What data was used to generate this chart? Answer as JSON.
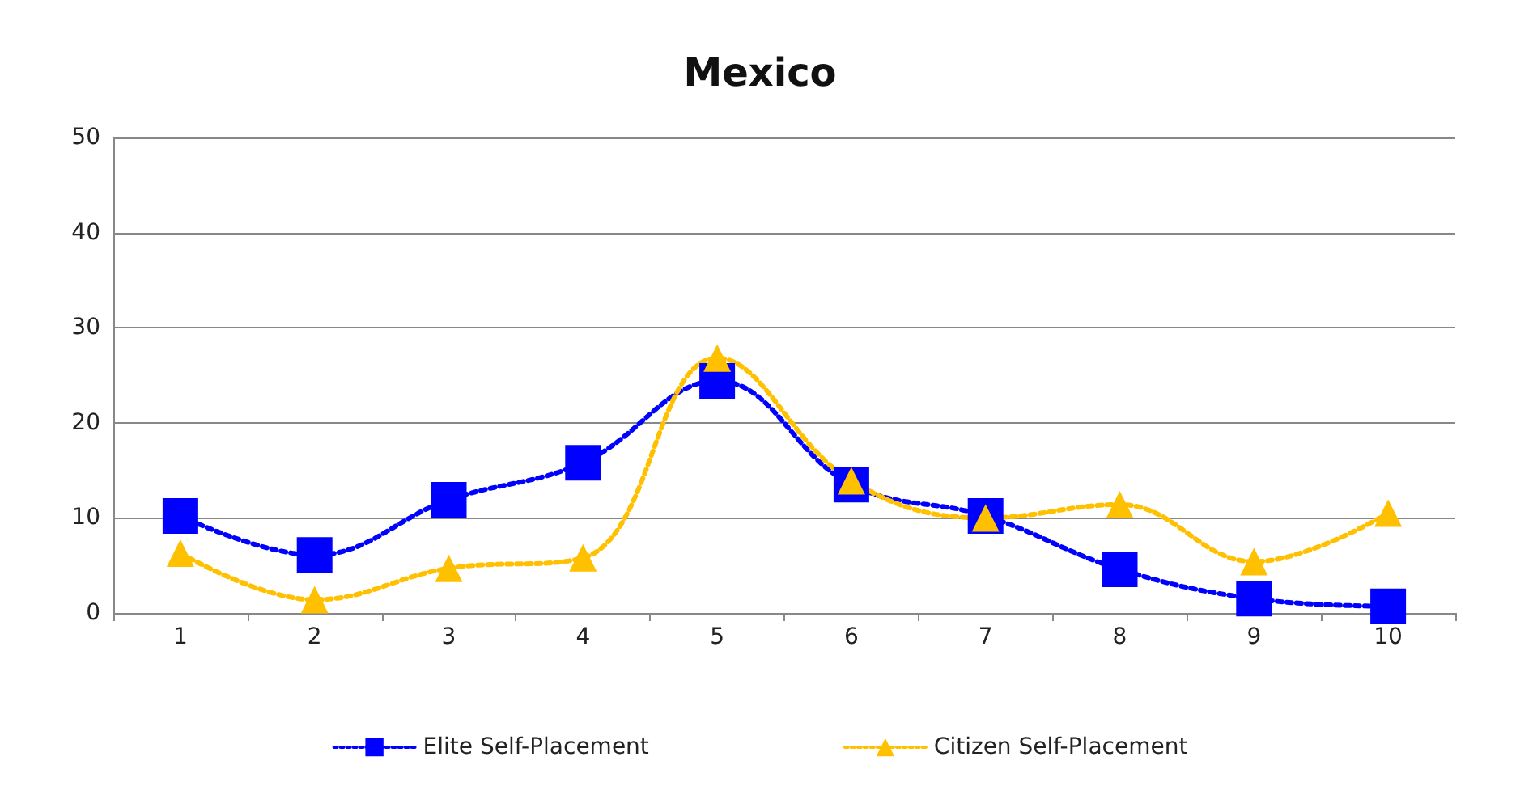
{
  "chart_data": {
    "type": "line",
    "title": "Mexico",
    "categories": [
      "1",
      "2",
      "3",
      "4",
      "5",
      "6",
      "7",
      "8",
      "9",
      "10"
    ],
    "series": [
      {
        "name": "Elite Self-Placement",
        "color": "#0000ff",
        "marker": "square",
        "values": [
          10.2,
          6.1,
          11.9,
          15.8,
          24.4,
          13.5,
          10.2,
          4.6,
          1.5,
          0.7
        ]
      },
      {
        "name": "Citizen Self-Placement",
        "color": "#ffc000",
        "marker": "triangle",
        "values": [
          6.3,
          1.4,
          4.7,
          5.8,
          26.8,
          13.9,
          10.0,
          11.4,
          5.4,
          10.5
        ]
      }
    ],
    "ylim": [
      0,
      50
    ],
    "yticks": [
      0,
      10,
      20,
      30,
      40,
      50
    ],
    "grid": "y",
    "legend": "bottom",
    "line_style": "dotted"
  }
}
